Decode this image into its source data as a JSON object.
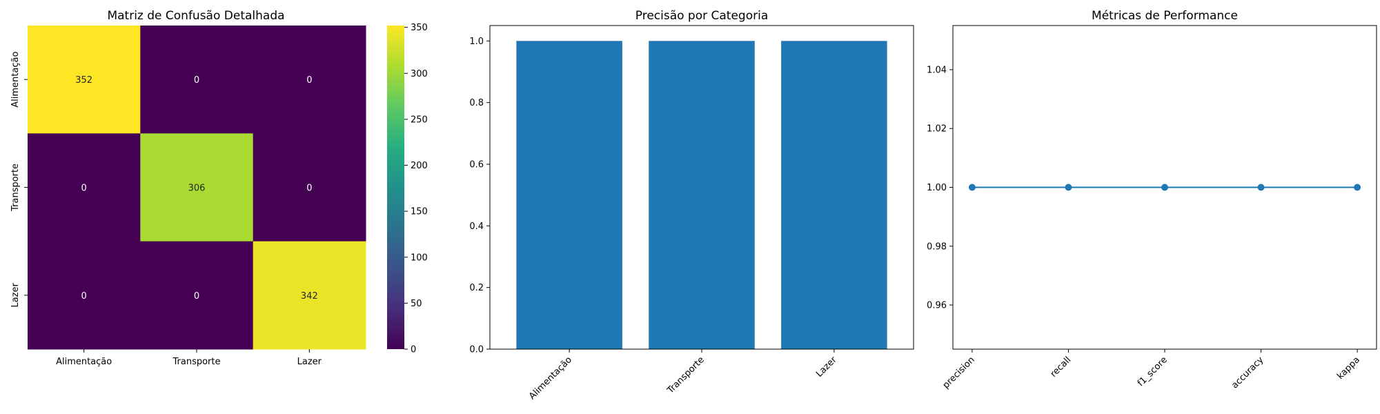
{
  "chart_data": [
    {
      "type": "heatmap",
      "title": "Matriz de Confusão Detalhada",
      "x_categories": [
        "Alimentação",
        "Transporte",
        "Lazer"
      ],
      "y_categories": [
        "Alimentação",
        "Transporte",
        "Lazer"
      ],
      "values": [
        [
          352,
          0,
          0
        ],
        [
          0,
          306,
          0
        ],
        [
          0,
          0,
          342
        ]
      ],
      "colormap": "viridis",
      "colorbar": {
        "range": [
          0,
          352
        ],
        "ticks": [
          0,
          50,
          100,
          150,
          200,
          250,
          300,
          350
        ]
      }
    },
    {
      "type": "bar",
      "title": "Precisão por Categoria",
      "categories": [
        "Alimentação",
        "Transporte",
        "Lazer"
      ],
      "values": [
        1.0,
        1.0,
        1.0
      ],
      "ylim": [
        0,
        1.05
      ],
      "yticks": [
        "0.0",
        "0.2",
        "0.4",
        "0.6",
        "0.8",
        "1.0"
      ],
      "color": "#1f77b4",
      "xtick_rotation": 45
    },
    {
      "type": "line",
      "title": "Métricas de Performance",
      "categories": [
        "precision",
        "recall",
        "f1_score",
        "accuracy",
        "kappa"
      ],
      "values": [
        1.0,
        1.0,
        1.0,
        1.0,
        1.0
      ],
      "ylim": [
        0.945,
        1.055
      ],
      "yticks": [
        "0.96",
        "0.98",
        "1.00",
        "1.02",
        "1.04"
      ],
      "color": "#1f77b4",
      "marker": "circle",
      "xtick_rotation": 45
    }
  ]
}
